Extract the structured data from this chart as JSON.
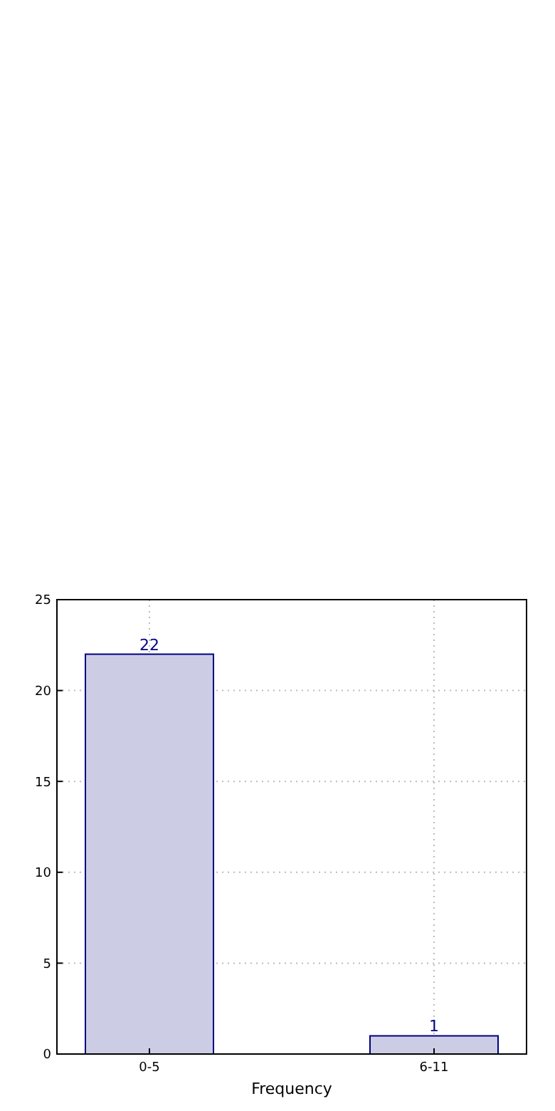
{
  "chart_data": {
    "type": "bar",
    "xlabel": "Frequency",
    "categories": [
      "0-5",
      "6-11"
    ],
    "values": [
      22,
      1
    ],
    "color": "#cccce5",
    "ylim": [
      0,
      25
    ],
    "yticks": [
      0,
      5,
      10,
      15,
      20,
      25
    ],
    "grid": true,
    "data_labels": true
  }
}
